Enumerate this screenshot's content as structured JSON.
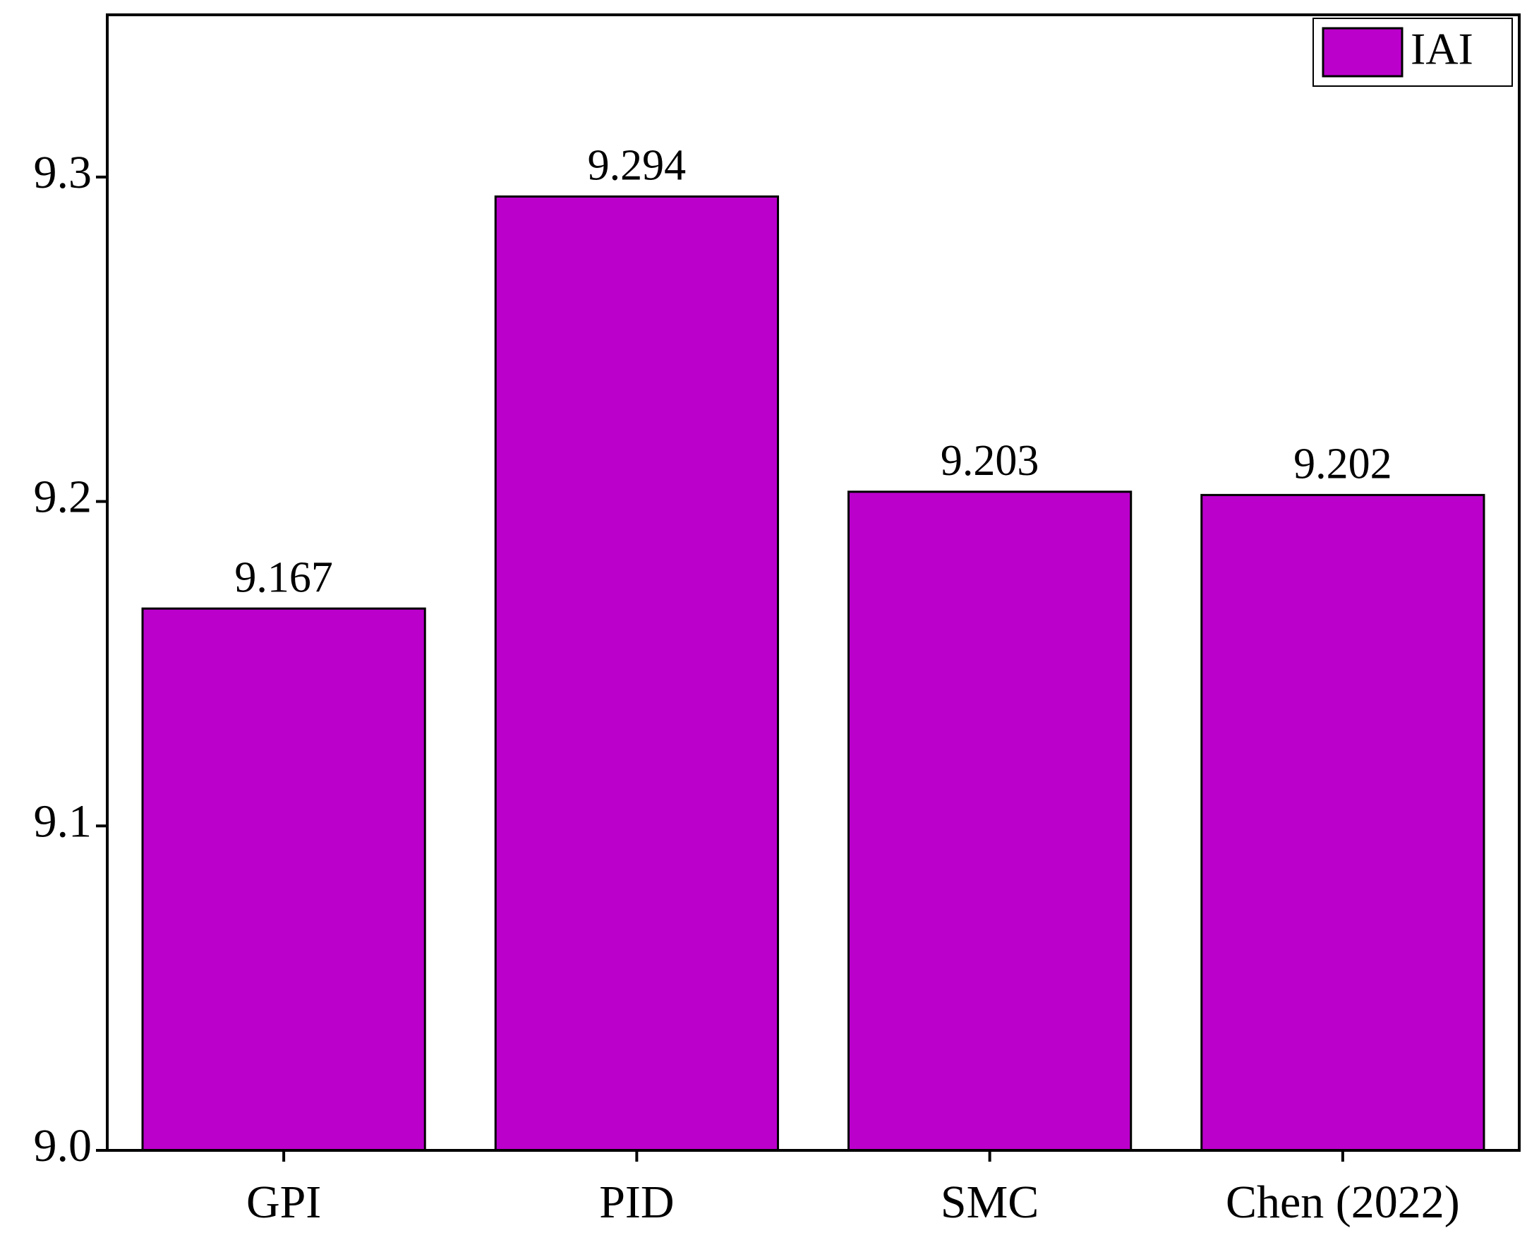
{
  "chart_data": {
    "type": "bar",
    "categories": [
      "GPI",
      "PID",
      "SMC",
      "Chen (2022)"
    ],
    "series": [
      {
        "name": "IAI",
        "color": "#bb00cc",
        "values": [
          9.167,
          9.294,
          9.203,
          9.202
        ]
      }
    ],
    "ylim": [
      9.0,
      9.35
    ],
    "yticks": [
      {
        "value": 9,
        "label": "9.0"
      },
      9.1,
      9.2,
      9.3
    ],
    "legend": "top-right"
  }
}
